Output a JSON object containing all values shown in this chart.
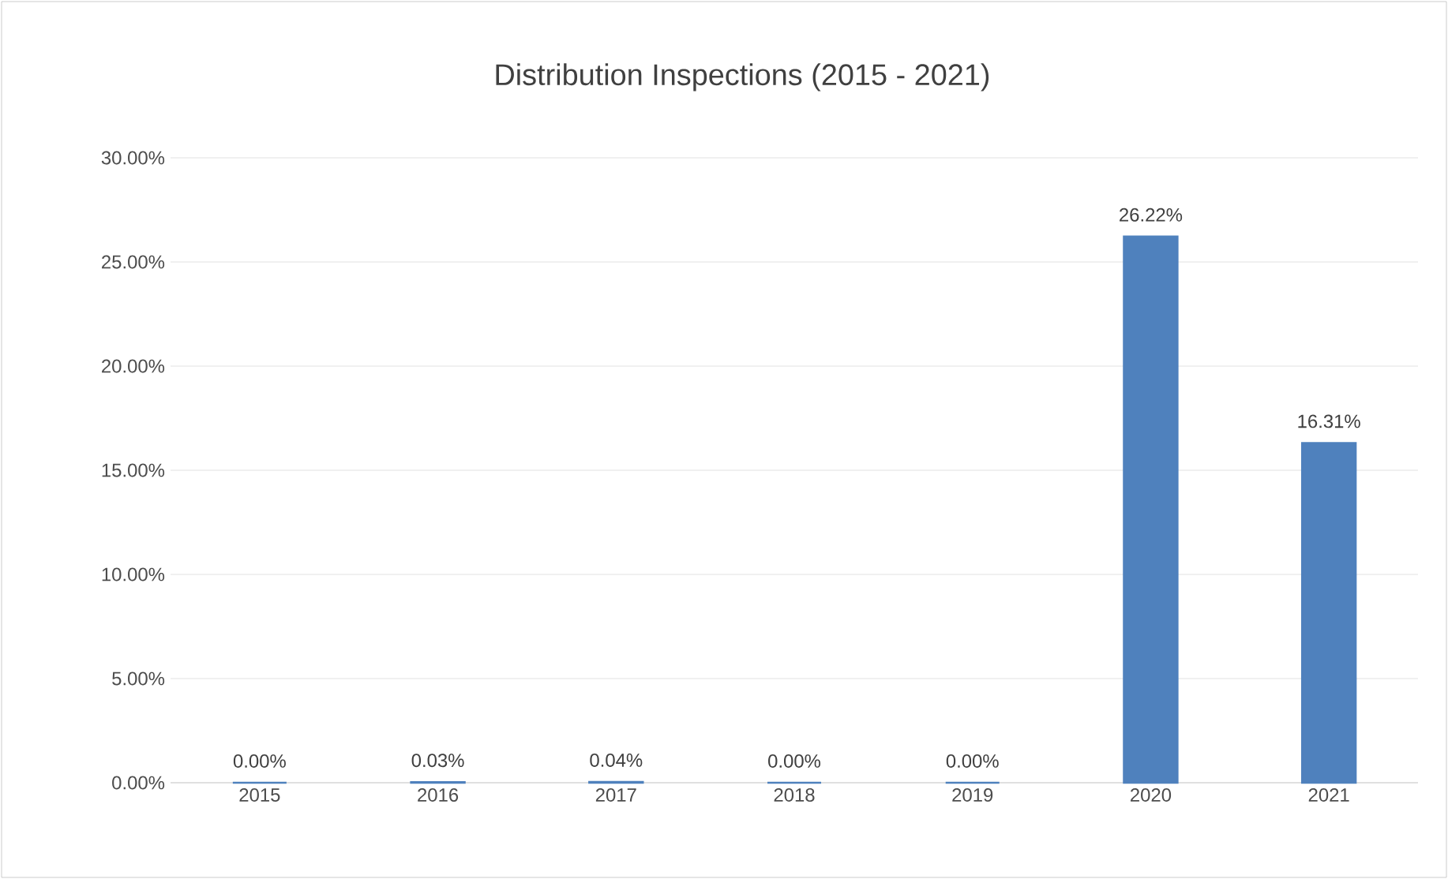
{
  "chart_data": {
    "type": "bar",
    "title": "Distribution Inspections (2015 - 2021)",
    "categories": [
      "2015",
      "2016",
      "2017",
      "2018",
      "2019",
      "2020",
      "2021"
    ],
    "values": [
      0,
      0.03,
      0.04,
      0,
      0,
      26.22,
      16.31
    ],
    "value_labels": [
      "0.00%",
      "0.03%",
      "0.04%",
      "0.00%",
      "0.00%",
      "26.22%",
      "16.31%"
    ],
    "color": "#4f81bd",
    "ylim": [
      0,
      30
    ],
    "yticks": [
      {
        "value": 0,
        "label": "0.00%"
      },
      {
        "value": 5,
        "label": "5.00%"
      },
      {
        "value": 10,
        "label": "10.00%"
      },
      {
        "value": 15,
        "label": "15.00%"
      },
      {
        "value": 20,
        "label": "20.00%"
      },
      {
        "value": 25,
        "label": "25.00%"
      },
      {
        "value": 30,
        "label": "30.00%"
      }
    ],
    "grid": "y"
  }
}
